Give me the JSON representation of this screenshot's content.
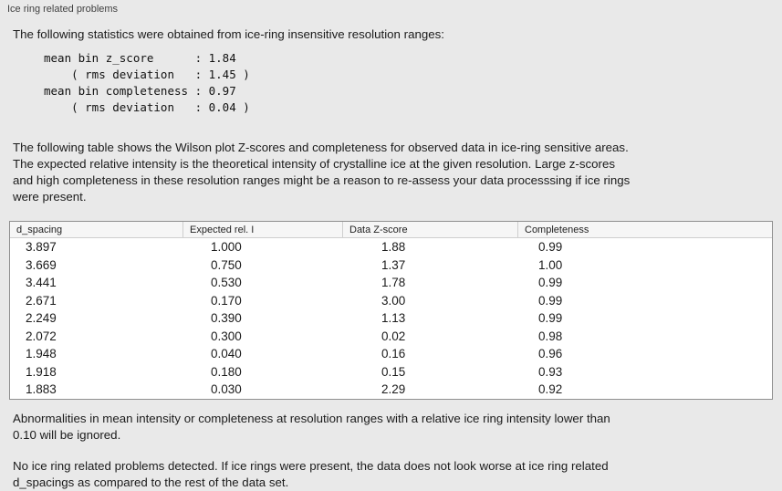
{
  "panel": {
    "title": "Ice ring related problems",
    "intro": "The following statistics were obtained from ice-ring insensitive resolution ranges:",
    "stats_block": "mean bin z_score      : 1.84\n    ( rms deviation   : 1.45 )\nmean bin completeness : 0.97\n    ( rms deviation   : 0.04 )",
    "table_description": "The following table shows the Wilson plot Z-scores and completeness for observed data in ice-ring sensitive areas.\nThe expected relative intensity is the theoretical intensity of crystalline ice at the given resolution. Large z-scores\nand high completeness in these resolution ranges might be a reason to re-assess your data processsing if ice rings\nwere present.",
    "note_ignored": "Abnormalities in mean intensity or completeness at resolution ranges with a relative ice ring intensity lower than\n0.10 will be ignored.",
    "note_result": "No ice ring related problems detected. If ice rings were present, the data does not look worse at ice ring related\nd_spacings as compared to the rest of the data set."
  },
  "table": {
    "columns": [
      "d_spacing",
      "Expected rel. I",
      "Data Z-score",
      "Completeness"
    ],
    "rows": [
      [
        "3.897",
        "1.000",
        "1.88",
        "0.99"
      ],
      [
        "3.669",
        "0.750",
        "1.37",
        "1.00"
      ],
      [
        "3.441",
        "0.530",
        "1.78",
        "0.99"
      ],
      [
        "2.671",
        "0.170",
        "3.00",
        "0.99"
      ],
      [
        "2.249",
        "0.390",
        "1.13",
        "0.99"
      ],
      [
        "2.072",
        "0.300",
        "0.02",
        "0.98"
      ],
      [
        "1.948",
        "0.040",
        "0.16",
        "0.96"
      ],
      [
        "1.918",
        "0.180",
        "0.15",
        "0.93"
      ],
      [
        "1.883",
        "0.030",
        "2.29",
        "0.92"
      ]
    ]
  },
  "colors": {
    "background": "#e9e9e9",
    "table_background": "#ffffff",
    "table_border": "#8f8f8f",
    "header_background": "#f6f6f6"
  }
}
